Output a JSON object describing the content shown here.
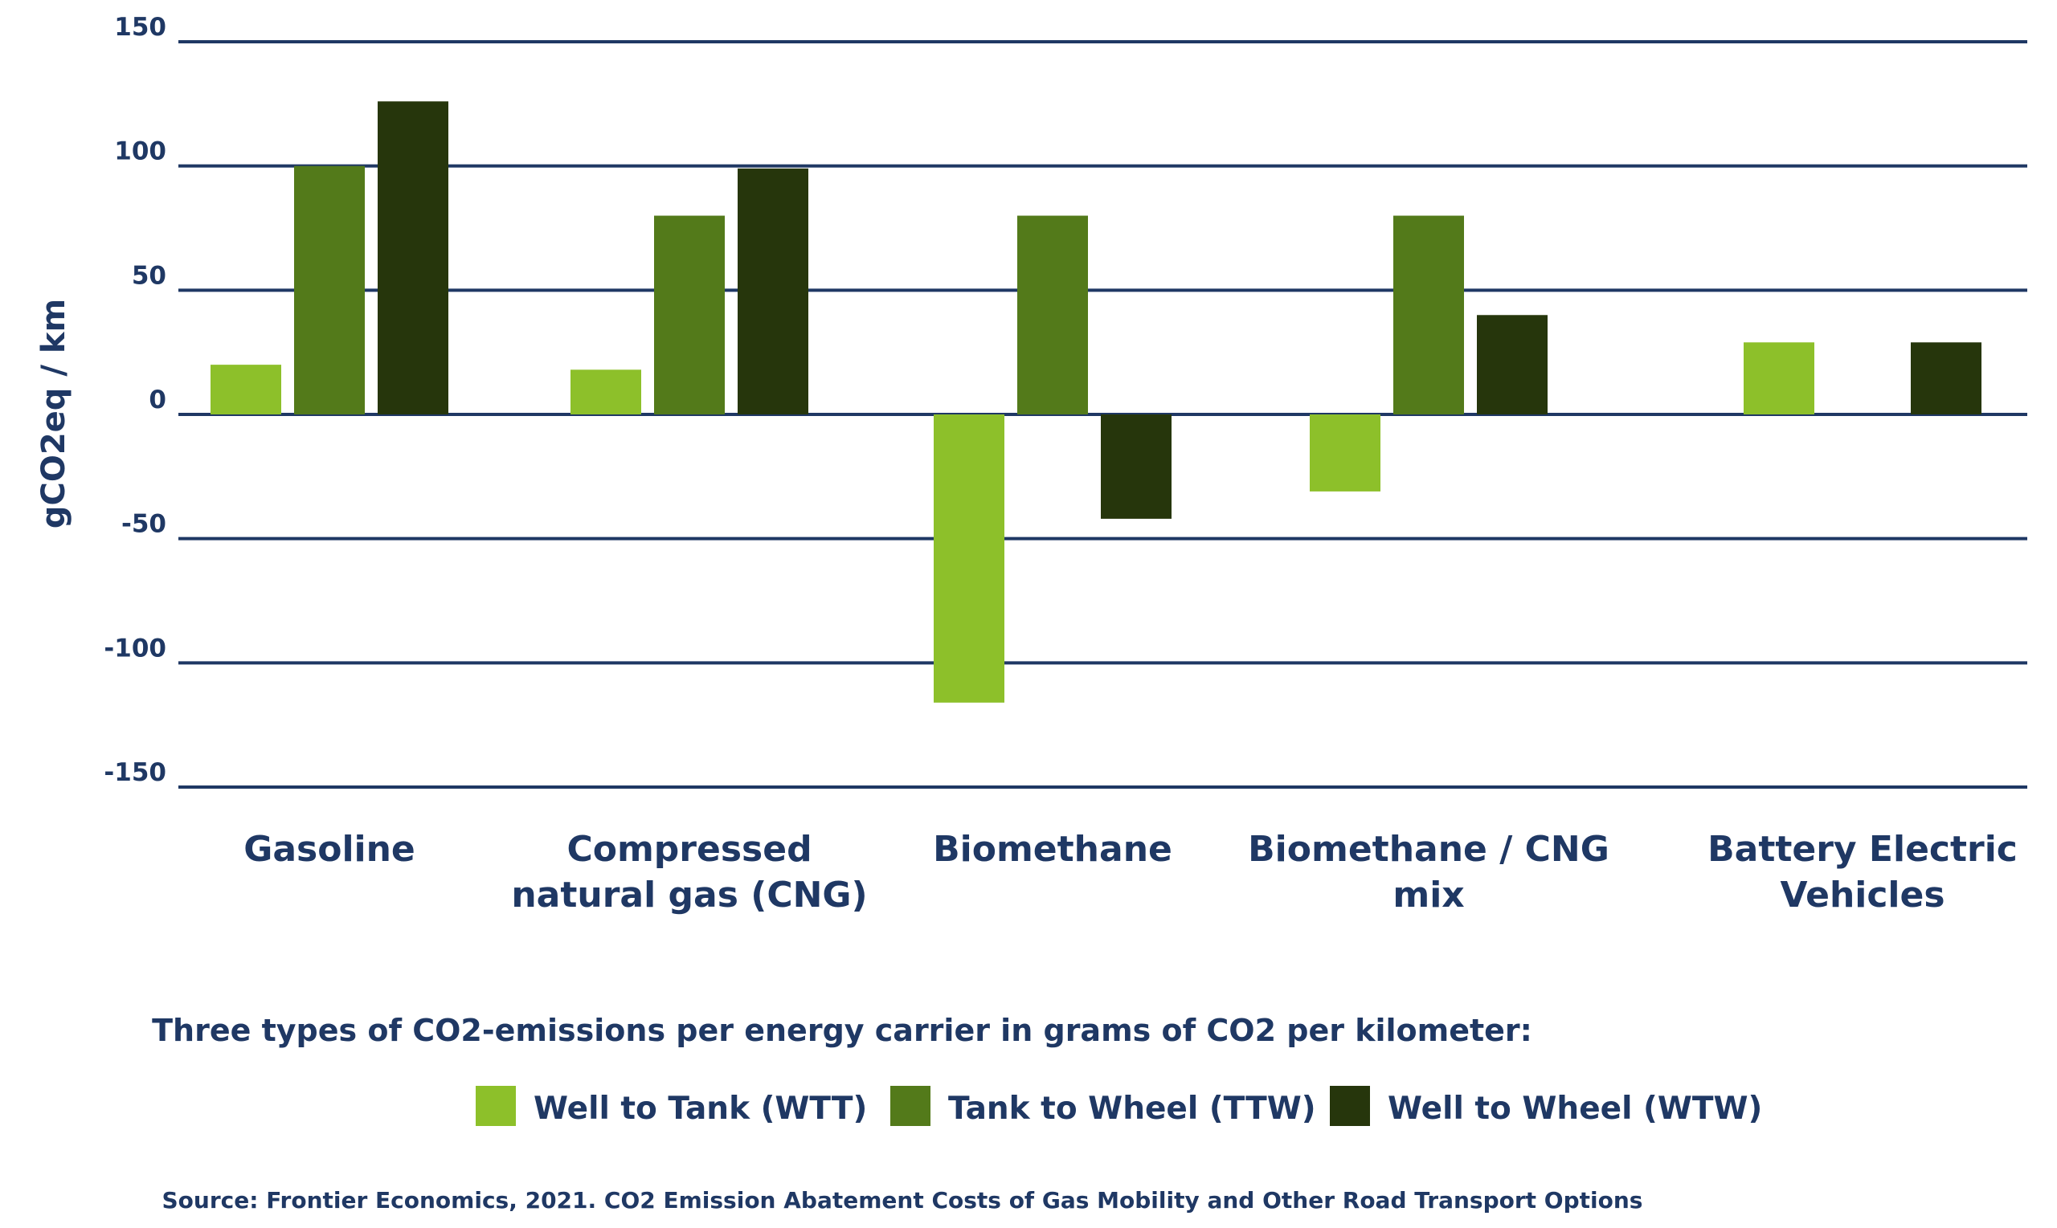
{
  "chart_data": {
    "type": "bar",
    "ylabel": "gCO2eq / km",
    "ylim": [
      -150,
      150
    ],
    "yticks": [
      150,
      100,
      50,
      0,
      -50,
      -100,
      -150
    ],
    "grid": true,
    "categories": [
      [
        "Gasoline"
      ],
      [
        "Compressed",
        "natural gas (CNG)"
      ],
      [
        "Biomethane"
      ],
      [
        "Biomethane / CNG",
        "mix"
      ],
      [
        "Battery Electric",
        "Vehicles"
      ]
    ],
    "series": [
      {
        "name": "Well to Tank (WTT)",
        "color": "#8dc02a",
        "values": [
          20,
          18,
          -116,
          -31,
          29
        ]
      },
      {
        "name": "Tank to Wheel (TTW)",
        "color": "#537a1a",
        "values": [
          100,
          80,
          80,
          80,
          0
        ]
      },
      {
        "name": "Well to Wheel (WTW)",
        "color": "#26360c",
        "values": [
          126,
          99,
          -42,
          40,
          29
        ]
      }
    ],
    "legend": {
      "title": "Three types of CO2-emissions per energy carrier in grams of CO2 per kilometer:",
      "placement": "bottom"
    },
    "source": "Source: Frontier Economics, 2021. CO2 Emission Abatement Costs of Gas Mobility and Other Road Transport Options"
  }
}
